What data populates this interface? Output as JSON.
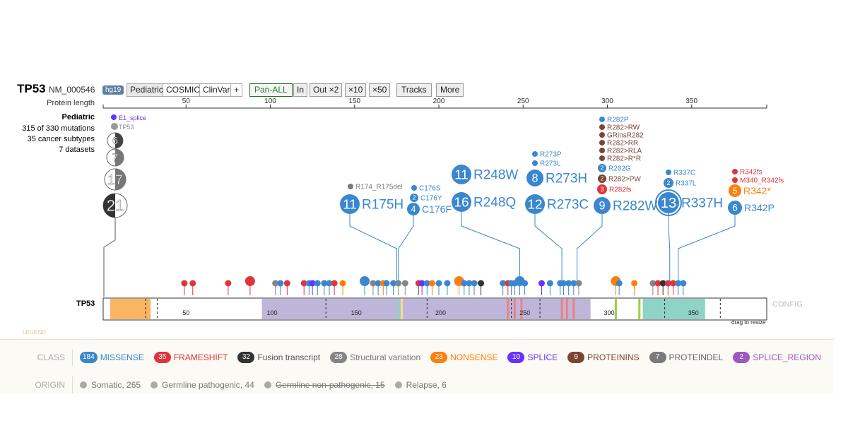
{
  "header": {
    "gene": "TP53",
    "isoform": "NM_000546",
    "genome": "hg19",
    "sources": [
      "Pediatric",
      "COSMIC",
      "ClinVar",
      "+"
    ],
    "panall": "Pan-ALL",
    "zoom": [
      "In",
      "Out ×2",
      "×10",
      "×50"
    ],
    "tracks": "Tracks",
    "more": "More"
  },
  "axis": {
    "label": "Protein length",
    "ticks": [
      50,
      100,
      150,
      200,
      250,
      300,
      350
    ],
    "max": 393
  },
  "track_info": {
    "title": "Pediatric",
    "mutations": "315 of 330 mutations",
    "subtypes": "35 cancer subtypes",
    "datasets": "7 datasets"
  },
  "colors": {
    "MISSENSE": "#3a87d0",
    "FRAMESHIFT": "#e0343c",
    "FUSION": "#333333",
    "SV": "#858585",
    "NONSENSE": "#ff7f0e",
    "SPLICE": "#6633ff",
    "PROTEININS": "#7b4534",
    "PROTEINDEL": "#7a7a7a",
    "SPLICE_REGION": "#9b59c2"
  },
  "left_stack": [
    {
      "label": "E1_splice",
      "cls": "SPLICE",
      "count": 1
    },
    {
      "label": "TP53",
      "cls": "SV",
      "count": 2
    },
    {
      "count": 6
    },
    {
      "count": 7
    },
    {
      "count": 17
    },
    {
      "count": 21
    }
  ],
  "labeled": [
    {
      "name": "R174_R175del",
      "pos": 175,
      "cls": "PROTEINDEL",
      "count": 1
    },
    {
      "name": "R175H",
      "pos": 175,
      "cls": "MISSENSE",
      "count": 11
    },
    {
      "name": "C176S",
      "pos": 176,
      "cls": "MISSENSE",
      "count": 1
    },
    {
      "name": "C176Y",
      "pos": 176,
      "cls": "MISSENSE",
      "count": 2
    },
    {
      "name": "C176F",
      "pos": 176,
      "cls": "MISSENSE",
      "count": 4
    },
    {
      "name": "R248W",
      "pos": 248,
      "cls": "MISSENSE",
      "count": 11
    },
    {
      "name": "R248Q",
      "pos": 248,
      "cls": "MISSENSE",
      "count": 16
    },
    {
      "name": "R273P",
      "pos": 273,
      "cls": "MISSENSE",
      "count": 1
    },
    {
      "name": "R273L",
      "pos": 273,
      "cls": "MISSENSE",
      "count": 1
    },
    {
      "name": "R273H",
      "pos": 273,
      "cls": "MISSENSE",
      "count": 8
    },
    {
      "name": "R273C",
      "pos": 273,
      "cls": "MISSENSE",
      "count": 12
    },
    {
      "name": "R282P",
      "pos": 282,
      "cls": "MISSENSE",
      "count": 1
    },
    {
      "name": "R282>RW",
      "pos": 282,
      "cls": "PROTEININS",
      "count": 1
    },
    {
      "name": "GRinsR282",
      "pos": 282,
      "cls": "PROTEININS",
      "count": 1
    },
    {
      "name": "R282>RR",
      "pos": 282,
      "cls": "PROTEININS",
      "count": 1
    },
    {
      "name": "R282>RLA",
      "pos": 282,
      "cls": "PROTEININS",
      "count": 1
    },
    {
      "name": "R282>R*R",
      "pos": 282,
      "cls": "PROTEININS",
      "count": 1
    },
    {
      "name": "R282G",
      "pos": 282,
      "cls": "MISSENSE",
      "count": 2
    },
    {
      "name": "R282>PW",
      "pos": 282,
      "cls": "PROTEININS",
      "count": 2
    },
    {
      "name": "R282fs",
      "pos": 282,
      "cls": "FRAMESHIFT",
      "count": 3
    },
    {
      "name": "R282W",
      "pos": 282,
      "cls": "MISSENSE",
      "count": 9
    },
    {
      "name": "R337C",
      "pos": 337,
      "cls": "MISSENSE",
      "count": 1
    },
    {
      "name": "R337L",
      "pos": 337,
      "cls": "MISSENSE",
      "count": 2
    },
    {
      "name": "R337H",
      "pos": 337,
      "cls": "MISSENSE",
      "count": 13
    },
    {
      "name": "R342fs",
      "pos": 342,
      "cls": "FRAMESHIFT",
      "count": 1
    },
    {
      "name": "M340_R342fs",
      "pos": 342,
      "cls": "FRAMESHIFT",
      "count": 1
    },
    {
      "name": "R342*",
      "pos": 342,
      "cls": "NONSENSE",
      "count": 5
    },
    {
      "name": "R342P",
      "pos": 342,
      "cls": "MISSENSE",
      "count": 6
    }
  ],
  "small_mutations": [
    [
      49,
      "FRAMESHIFT"
    ],
    [
      54,
      "FRAMESHIFT"
    ],
    [
      75,
      "FRAMESHIFT"
    ],
    [
      88,
      "FRAMESHIFT"
    ],
    [
      103,
      "SV"
    ],
    [
      106,
      "MISSENSE"
    ],
    [
      110,
      "FRAMESHIFT"
    ],
    [
      120,
      "FRAMESHIFT"
    ],
    [
      123,
      "MISSENSE"
    ],
    [
      125,
      "SPLICE"
    ],
    [
      128,
      "MISSENSE"
    ],
    [
      132,
      "MISSENSE"
    ],
    [
      135,
      "MISSENSE"
    ],
    [
      138,
      "FRAMESHIFT"
    ],
    [
      143,
      "NONSENSE"
    ],
    [
      156,
      "MISSENSE"
    ],
    [
      161,
      "SV"
    ],
    [
      164,
      "MISSENSE"
    ],
    [
      167,
      "NONSENSE"
    ],
    [
      169,
      "MISSENSE"
    ],
    [
      173,
      "MISSENSE"
    ],
    [
      176,
      "SV"
    ],
    [
      180,
      "SV"
    ],
    [
      188,
      "FRAMESHIFT"
    ],
    [
      190,
      "SPLICE"
    ],
    [
      193,
      "MISSENSE"
    ],
    [
      196,
      "NONSENSE"
    ],
    [
      200,
      "MISSENSE"
    ],
    [
      205,
      "MISSENSE"
    ],
    [
      212,
      "NONSENSE"
    ],
    [
      215,
      "MISSENSE"
    ],
    [
      218,
      "MISSENSE"
    ],
    [
      221,
      "MISSENSE"
    ],
    [
      225,
      "FUSION"
    ],
    [
      238,
      "MISSENSE"
    ],
    [
      241,
      "FRAMESHIFT"
    ],
    [
      243,
      "MISSENSE"
    ],
    [
      245,
      "MISSENSE"
    ],
    [
      248,
      "MISSENSE"
    ],
    [
      251,
      "MISSENSE"
    ],
    [
      261,
      "SPLICE"
    ],
    [
      266,
      "MISSENSE"
    ],
    [
      272,
      "MISSENSE"
    ],
    [
      274,
      "MISSENSE"
    ],
    [
      277,
      "MISSENSE"
    ],
    [
      280,
      "MISSENSE"
    ],
    [
      283,
      "SV"
    ],
    [
      305,
      "NONSENSE"
    ],
    [
      307,
      "MISSENSE"
    ],
    [
      316,
      "NONSENSE"
    ],
    [
      327,
      "SV"
    ],
    [
      330,
      "FRAMESHIFT"
    ],
    [
      333,
      "FUSION"
    ],
    [
      336,
      "FRAMESHIFT"
    ],
    [
      339,
      "FRAMESHIFT"
    ],
    [
      342,
      "MISSENSE"
    ],
    [
      345,
      "MISSENSE"
    ]
  ],
  "protein_track": {
    "label": "TP53",
    "config": "CONFIG",
    "resize": "drag to resize",
    "domains": [
      {
        "start": 5,
        "end": 29,
        "color": "#fbb462"
      },
      {
        "start": 95,
        "end": 290,
        "color": "#bdb6da"
      },
      {
        "start": 321,
        "end": 358,
        "color": "#8ed3c6"
      }
    ],
    "marks": [
      [
        178,
        "#f6e27f"
      ],
      [
        176,
        "#8ed3c6"
      ],
      [
        241,
        "#f08080"
      ],
      [
        245,
        "#f08080"
      ],
      [
        249,
        "#f08080"
      ],
      [
        273,
        "#f08080"
      ],
      [
        276,
        "#f08080"
      ],
      [
        280,
        "#f08080"
      ],
      [
        305,
        "#9bd13a"
      ],
      [
        319,
        "#9bd13a"
      ]
    ]
  },
  "legend": {
    "title": "LEGEND",
    "class_label": "CLASS",
    "origin_label": "ORIGIN",
    "classes": [
      {
        "count": "184",
        "label": "MISSENSE",
        "cls": "MISSENSE",
        "color": "#3a87d0"
      },
      {
        "count": "35",
        "label": "FRAMESHIFT",
        "cls": "FRAMESHIFT",
        "color": "#e0343c"
      },
      {
        "count": "32",
        "label": "Fusion transcript",
        "cls": "FUSION",
        "color": "#555"
      },
      {
        "count": "28",
        "label": "Structural variation",
        "cls": "SV",
        "color": "#777"
      },
      {
        "count": "23",
        "label": "NONSENSE",
        "cls": "NONSENSE",
        "color": "#ff7f0e"
      },
      {
        "count": "10",
        "label": "SPLICE",
        "cls": "SPLICE",
        "color": "#6633ff"
      },
      {
        "count": "9",
        "label": "PROTEININS",
        "cls": "PROTEININS",
        "color": "#7b4534"
      },
      {
        "count": "7",
        "label": "PROTEINDEL",
        "cls": "PROTEINDEL",
        "color": "#666"
      },
      {
        "count": "2",
        "label": "SPLICE_REGION",
        "cls": "SPLICE_REGION",
        "color": "#9b59c2"
      }
    ],
    "origins": [
      {
        "label": "Somatic, 265",
        "struck": false
      },
      {
        "label": "Germline pathogenic, 44",
        "struck": false
      },
      {
        "label": "Germline non-pathogenic, 15",
        "struck": true
      },
      {
        "label": "Relapse, 6",
        "struck": false
      }
    ]
  }
}
